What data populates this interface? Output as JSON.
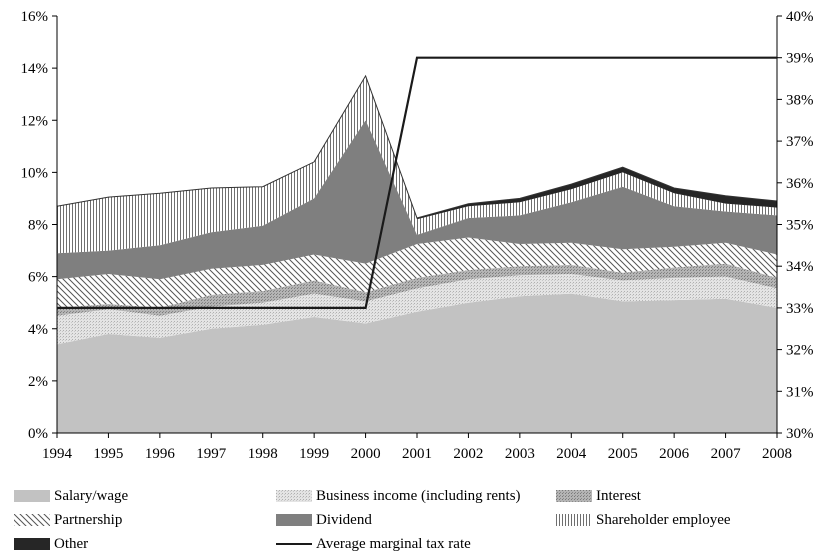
{
  "chart_data": {
    "type": "area",
    "stacked": true,
    "categories": [
      "1994",
      "1995",
      "1996",
      "1997",
      "1998",
      "1999",
      "2000",
      "2001",
      "2002",
      "2003",
      "2004",
      "2005",
      "2006",
      "2007",
      "2008"
    ],
    "y_left": {
      "lim": [
        0,
        16
      ],
      "ticks": [
        "0%",
        "2%",
        "4%",
        "6%",
        "8%",
        "10%",
        "12%",
        "14%",
        "16%"
      ]
    },
    "y_right": {
      "lim": [
        30,
        40
      ],
      "ticks": [
        "30%",
        "31%",
        "32%",
        "33%",
        "34%",
        "35%",
        "36%",
        "37%",
        "38%",
        "39%",
        "40%"
      ]
    },
    "series": [
      {
        "name": "Salary/wage",
        "axis": "left",
        "color": "#c0c0c0",
        "values": [
          3.4,
          3.8,
          3.65,
          4.0,
          4.15,
          4.45,
          4.2,
          4.65,
          5.0,
          5.25,
          5.35,
          5.05,
          5.1,
          5.15,
          4.8
        ]
      },
      {
        "name": "Business income (including rents)",
        "axis": "left",
        "color": "#dcdcdc",
        "values": [
          1.1,
          0.95,
          0.85,
          0.85,
          0.85,
          0.9,
          0.85,
          0.9,
          0.9,
          0.8,
          0.75,
          0.8,
          0.85,
          0.85,
          0.75
        ]
      },
      {
        "name": "Interest",
        "axis": "left",
        "color": "#a8a8a8",
        "values": [
          0.3,
          0.2,
          0.3,
          0.45,
          0.45,
          0.5,
          0.35,
          0.4,
          0.35,
          0.35,
          0.35,
          0.3,
          0.4,
          0.5,
          0.4
        ]
      },
      {
        "name": "Partnership",
        "axis": "left",
        "color": "#ffffff",
        "values": [
          1.1,
          1.15,
          1.1,
          1.0,
          1.0,
          1.0,
          1.1,
          1.3,
          1.25,
          0.85,
          0.85,
          0.9,
          0.8,
          0.8,
          0.9
        ]
      },
      {
        "name": "Dividend",
        "axis": "left",
        "color": "#808080",
        "values": [
          1.0,
          0.9,
          1.3,
          1.4,
          1.5,
          2.15,
          5.5,
          0.35,
          0.75,
          1.1,
          1.55,
          2.4,
          1.55,
          1.2,
          1.5
        ]
      },
      {
        "name": "Shareholder employee",
        "axis": "left",
        "color": "#f2f2f2",
        "values": [
          1.8,
          2.05,
          2.0,
          1.7,
          1.5,
          1.4,
          1.7,
          0.6,
          0.45,
          0.5,
          0.5,
          0.55,
          0.5,
          0.3,
          0.3
        ]
      },
      {
        "name": "Other",
        "axis": "left",
        "color": "#2a2a2a",
        "values": [
          0.0,
          0.0,
          0.0,
          0.0,
          0.0,
          0.0,
          0.0,
          0.05,
          0.1,
          0.15,
          0.2,
          0.2,
          0.2,
          0.3,
          0.25
        ]
      },
      {
        "name": "Average marginal tax rate",
        "axis": "right",
        "type": "line",
        "color": "#1a1a1a",
        "values": [
          33,
          33,
          33,
          33,
          33,
          33,
          33,
          39,
          39,
          39,
          39,
          39,
          39,
          39,
          39
        ]
      }
    ],
    "legend_position": "bottom",
    "grid": false
  }
}
